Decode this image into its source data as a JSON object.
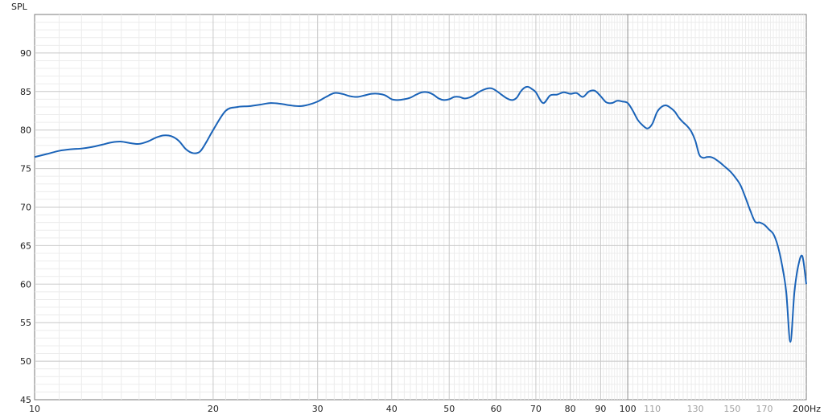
{
  "chart_data": {
    "type": "line",
    "title": "",
    "ylabel": "SPL",
    "xlabel": "Hz",
    "xscale": "log",
    "xlim": [
      10,
      200
    ],
    "ylim": [
      45,
      95
    ],
    "grid": true,
    "y_ticks": [
      45,
      50,
      55,
      60,
      65,
      70,
      75,
      80,
      85,
      90
    ],
    "x_ticks": [
      {
        "value": 10,
        "label": "10",
        "major": true
      },
      {
        "value": 20,
        "label": "20",
        "major": true
      },
      {
        "value": 30,
        "label": "30",
        "major": true
      },
      {
        "value": 40,
        "label": "40",
        "major": true
      },
      {
        "value": 50,
        "label": "50",
        "major": true
      },
      {
        "value": 60,
        "label": "60",
        "major": true
      },
      {
        "value": 70,
        "label": "70",
        "major": true
      },
      {
        "value": 80,
        "label": "80",
        "major": true
      },
      {
        "value": 90,
        "label": "90",
        "major": true
      },
      {
        "value": 100,
        "label": "100",
        "major": true
      },
      {
        "value": 110,
        "label": "110",
        "major": false
      },
      {
        "value": 130,
        "label": "130",
        "major": false
      },
      {
        "value": 150,
        "label": "150",
        "major": false
      },
      {
        "value": 170,
        "label": "170",
        "major": false
      },
      {
        "value": 200,
        "label": "200",
        "major": true
      }
    ],
    "series": [
      {
        "color": "#1a63b8",
        "x": [
          10,
          10.5,
          11,
          11.5,
          12,
          12.5,
          13,
          13.5,
          14,
          14.5,
          15,
          15.5,
          16,
          16.5,
          17,
          17.5,
          18,
          18.5,
          19,
          19.5,
          20,
          21,
          22,
          23,
          24,
          25,
          26,
          27,
          28,
          29,
          30,
          31,
          32,
          33,
          34,
          35,
          36,
          37,
          38,
          39,
          40,
          41,
          42,
          43,
          44,
          45,
          46,
          47,
          48,
          49,
          50,
          51,
          52,
          53,
          54,
          55,
          56,
          57,
          58,
          59,
          60,
          61,
          62,
          63,
          64,
          65,
          66,
          67,
          68,
          69,
          70,
          72,
          74,
          76,
          78,
          80,
          82,
          84,
          86,
          88,
          90,
          92,
          94,
          96,
          98,
          100,
          102,
          104,
          106,
          108,
          110,
          112,
          114,
          116,
          118,
          120,
          122,
          124,
          126,
          128,
          130,
          132,
          134,
          136,
          138,
          140,
          143,
          146,
          149,
          152,
          155,
          158,
          161,
          164,
          167,
          170,
          173,
          176,
          179,
          182,
          185,
          188,
          191,
          194,
          197,
          200
        ],
        "y": [
          76.5,
          76.9,
          77.3,
          77.5,
          77.6,
          77.8,
          78.1,
          78.4,
          78.5,
          78.3,
          78.2,
          78.5,
          79.0,
          79.3,
          79.2,
          78.6,
          77.5,
          77.0,
          77.2,
          78.5,
          80.0,
          82.5,
          83.0,
          83.1,
          83.3,
          83.5,
          83.4,
          83.2,
          83.1,
          83.3,
          83.7,
          84.3,
          84.8,
          84.7,
          84.4,
          84.3,
          84.5,
          84.7,
          84.7,
          84.5,
          84.0,
          83.9,
          84.0,
          84.2,
          84.6,
          84.9,
          84.9,
          84.6,
          84.1,
          83.9,
          84.0,
          84.3,
          84.3,
          84.1,
          84.2,
          84.5,
          84.9,
          85.2,
          85.4,
          85.4,
          85.1,
          84.7,
          84.3,
          84.0,
          83.9,
          84.2,
          85.0,
          85.5,
          85.6,
          85.3,
          84.9,
          83.5,
          84.5,
          84.6,
          84.9,
          84.7,
          84.8,
          84.3,
          85.0,
          85.1,
          84.4,
          83.6,
          83.5,
          83.8,
          83.7,
          83.5,
          82.5,
          81.3,
          80.6,
          80.2,
          80.8,
          82.3,
          83.0,
          83.2,
          82.9,
          82.4,
          81.6,
          81.0,
          80.5,
          79.8,
          78.6,
          76.8,
          76.4,
          76.5,
          76.5,
          76.3,
          75.8,
          75.2,
          74.6,
          73.8,
          72.8,
          71.2,
          69.5,
          68.1,
          68.0,
          67.7,
          67.1,
          66.5,
          65.0,
          62.5,
          59.0,
          52.5,
          59.0,
          62.5,
          63.6,
          60.0
        ]
      }
    ]
  }
}
